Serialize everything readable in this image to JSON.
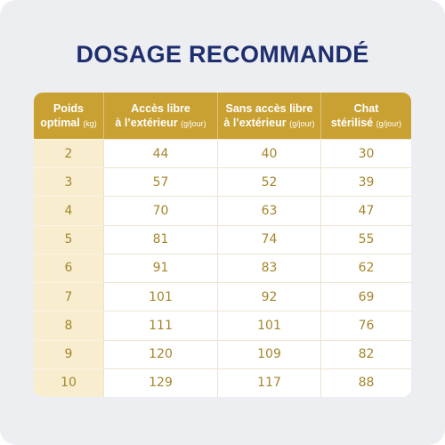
{
  "title": "DOSAGE RECOMMANDÉ",
  "table": {
    "header": [
      {
        "line1": "Poids",
        "line2": "optimal",
        "unit": "(kg)"
      },
      {
        "line1": "Accès libre",
        "line2": "à l’extérieur",
        "unit": "(g/jour)"
      },
      {
        "line1": "Sans accès libre",
        "line2": "à l’extérieur",
        "unit": "(g/jour)"
      },
      {
        "line1": "Chat",
        "line2": "stérilisé",
        "unit": "(g/jour)"
      }
    ],
    "rows": [
      [
        2,
        44,
        40,
        30
      ],
      [
        3,
        57,
        52,
        39
      ],
      [
        4,
        70,
        63,
        47
      ],
      [
        5,
        81,
        74,
        55
      ],
      [
        6,
        91,
        83,
        62
      ],
      [
        7,
        101,
        92,
        69
      ],
      [
        8,
        111,
        101,
        76
      ],
      [
        9,
        120,
        109,
        82
      ],
      [
        10,
        129,
        117,
        88
      ]
    ]
  }
}
